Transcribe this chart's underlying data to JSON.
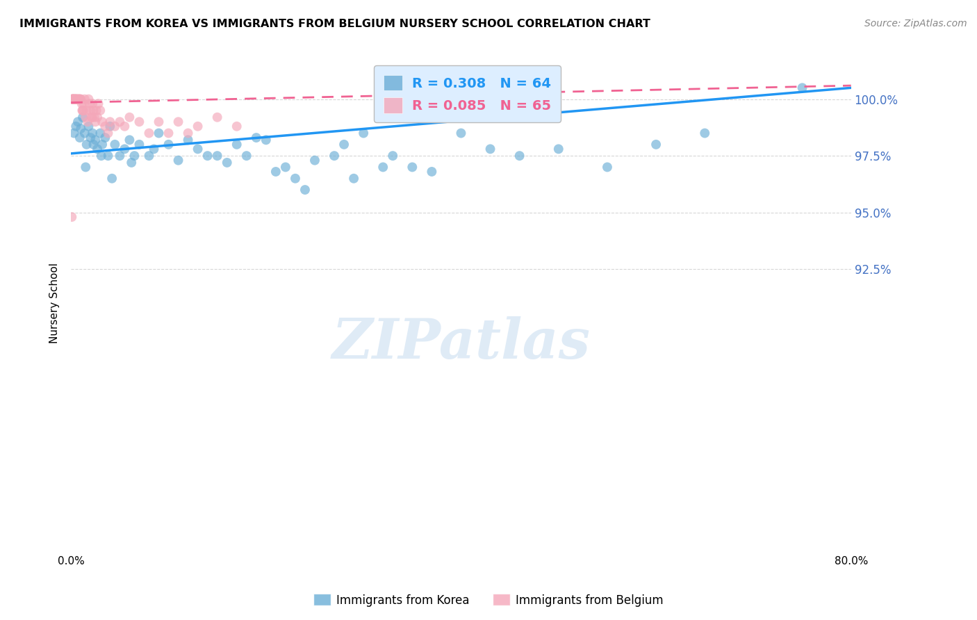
{
  "title": "IMMIGRANTS FROM KOREA VS IMMIGRANTS FROM BELGIUM NURSERY SCHOOL CORRELATION CHART",
  "source": "Source: ZipAtlas.com",
  "ylabel": "Nursery School",
  "xlim": [
    0.0,
    80.0
  ],
  "ylim": [
    80.0,
    102.0
  ],
  "ytick_shown_vals": [
    100.0,
    97.5,
    95.0,
    92.5
  ],
  "ytick_labels_shown": [
    "100.0%",
    "97.5%",
    "95.0%",
    "92.5%"
  ],
  "xticks": [
    0.0,
    10.0,
    20.0,
    30.0,
    40.0,
    50.0,
    60.0,
    70.0,
    80.0
  ],
  "xtick_labels": [
    "0.0%",
    "",
    "",
    "",
    "",
    "",
    "",
    "",
    "80.0%"
  ],
  "korea_R": 0.308,
  "korea_N": 64,
  "belgium_R": 0.085,
  "belgium_N": 65,
  "korea_color": "#6baed6",
  "belgium_color": "#f4a7b9",
  "korea_line_color": "#2196f3",
  "belgium_line_color": "#f06292",
  "watermark": "ZIPatlas",
  "watermark_color": "#c6dbef",
  "background_color": "#ffffff",
  "grid_color": "#cccccc",
  "korea_scatter_x": [
    0.3,
    0.5,
    0.7,
    0.9,
    1.0,
    1.2,
    1.4,
    1.6,
    1.8,
    2.0,
    2.2,
    2.5,
    2.7,
    3.0,
    3.2,
    3.5,
    3.8,
    4.0,
    4.5,
    5.0,
    5.5,
    6.0,
    6.5,
    7.0,
    8.0,
    9.0,
    10.0,
    11.0,
    12.0,
    13.0,
    14.0,
    15.0,
    16.0,
    17.0,
    18.0,
    20.0,
    21.0,
    22.0,
    23.0,
    24.0,
    25.0,
    27.0,
    28.0,
    29.0,
    30.0,
    32.0,
    33.0,
    35.0,
    37.0,
    40.0,
    43.0,
    46.0,
    50.0,
    55.0,
    60.0,
    65.0,
    75.0,
    1.5,
    2.3,
    3.1,
    4.2,
    6.2,
    8.5,
    19.0
  ],
  "korea_scatter_y": [
    98.5,
    98.8,
    99.0,
    98.3,
    98.7,
    99.2,
    98.5,
    98.0,
    98.8,
    98.3,
    98.5,
    98.2,
    97.8,
    98.5,
    98.0,
    98.3,
    97.5,
    98.8,
    98.0,
    97.5,
    97.8,
    98.2,
    97.5,
    98.0,
    97.5,
    98.5,
    98.0,
    97.3,
    98.2,
    97.8,
    97.5,
    97.5,
    97.2,
    98.0,
    97.5,
    98.2,
    96.8,
    97.0,
    96.5,
    96.0,
    97.3,
    97.5,
    98.0,
    96.5,
    98.5,
    97.0,
    97.5,
    97.0,
    96.8,
    98.5,
    97.8,
    97.5,
    97.8,
    97.0,
    98.0,
    98.5,
    100.5,
    97.0,
    98.0,
    97.5,
    96.5,
    97.2,
    97.8,
    98.3
  ],
  "belgium_scatter_x": [
    0.1,
    0.15,
    0.2,
    0.25,
    0.3,
    0.35,
    0.4,
    0.45,
    0.5,
    0.55,
    0.6,
    0.65,
    0.7,
    0.75,
    0.8,
    0.85,
    0.9,
    0.95,
    1.0,
    1.1,
    1.2,
    1.3,
    1.4,
    1.5,
    1.6,
    1.7,
    1.8,
    1.9,
    2.0,
    2.1,
    2.2,
    2.3,
    2.4,
    2.5,
    2.6,
    2.7,
    2.8,
    3.0,
    3.2,
    3.5,
    3.8,
    4.0,
    4.5,
    5.0,
    5.5,
    6.0,
    7.0,
    8.0,
    9.0,
    10.0,
    11.0,
    12.0,
    13.0,
    15.0,
    17.0,
    0.12,
    0.18,
    0.22,
    0.32,
    0.42,
    0.52,
    1.15,
    1.25,
    2.15,
    0.08
  ],
  "belgium_scatter_y": [
    100.0,
    100.0,
    100.0,
    100.0,
    100.0,
    100.0,
    100.0,
    100.0,
    100.0,
    100.0,
    100.0,
    100.0,
    100.0,
    100.0,
    100.0,
    100.0,
    100.0,
    100.0,
    100.0,
    99.8,
    99.5,
    99.8,
    100.0,
    99.2,
    99.5,
    99.0,
    100.0,
    99.8,
    99.5,
    99.2,
    99.8,
    99.5,
    99.2,
    99.0,
    99.5,
    99.2,
    99.8,
    99.5,
    99.0,
    98.8,
    98.5,
    99.0,
    98.8,
    99.0,
    98.8,
    99.2,
    99.0,
    98.5,
    99.0,
    98.5,
    99.0,
    98.5,
    98.8,
    99.2,
    98.8,
    100.0,
    100.0,
    100.0,
    100.0,
    100.0,
    100.0,
    99.5,
    99.5,
    99.2,
    94.8
  ],
  "korea_line_x": [
    0.0,
    80.0
  ],
  "korea_line_y": [
    97.6,
    100.5
  ],
  "belgium_line_x": [
    0.0,
    80.0
  ],
  "belgium_line_y": [
    99.85,
    100.6
  ]
}
